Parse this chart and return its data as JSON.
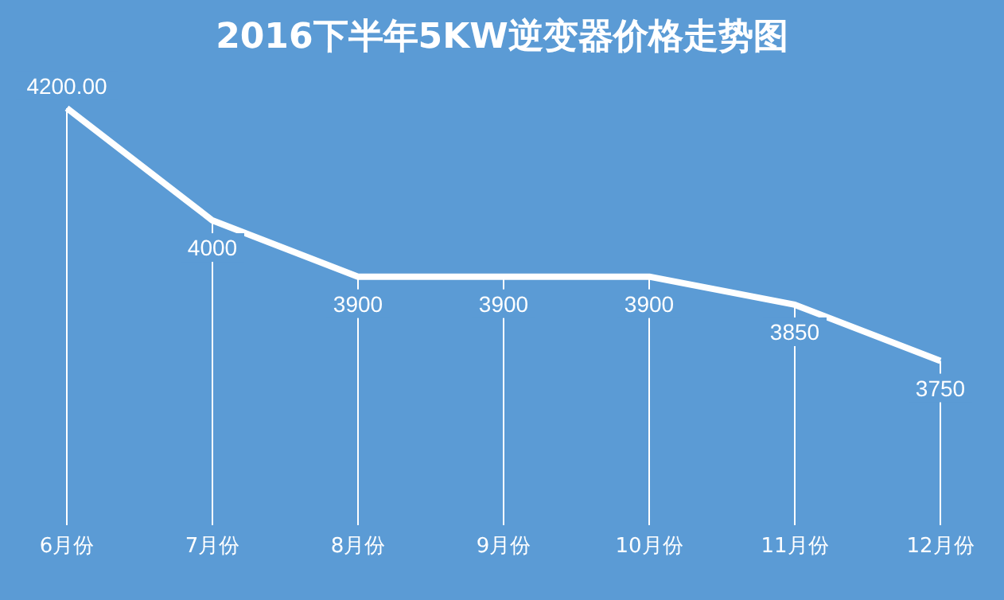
{
  "chart_data": {
    "type": "line",
    "title": "2016下半年5KW逆变器价格走势图",
    "categories": [
      "6月份",
      "7月份",
      "8月份",
      "9月份",
      "10月份",
      "11月份",
      "12月份"
    ],
    "values": [
      4200,
      4000,
      3900,
      3900,
      3900,
      3850,
      3750
    ],
    "value_labels": [
      "4200.00",
      "4000",
      "3900",
      "3900",
      "3900",
      "3850",
      "3750"
    ],
    "color": "#ffffff",
    "marker": "none",
    "grid": "x"
  }
}
